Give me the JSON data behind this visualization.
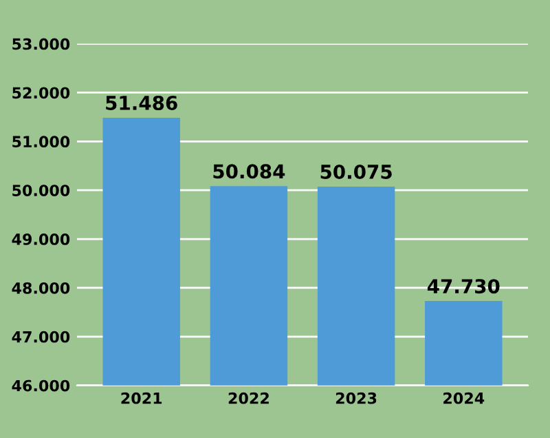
{
  "chart_data": {
    "type": "bar",
    "categories": [
      "2021",
      "2022",
      "2023",
      "2024"
    ],
    "values": [
      51486,
      50084,
      50075,
      47730
    ],
    "color": "#4f9bd7",
    "value_labels": [
      "51.486",
      "50.084",
      "50.075",
      "47.730"
    ],
    "ylim": [
      46000,
      53000
    ],
    "yticks": [
      {
        "value": 46000,
        "label": "46.000"
      },
      {
        "value": 47000,
        "label": "47.000"
      },
      {
        "value": 48000,
        "label": "48.000"
      },
      {
        "value": 49000,
        "label": "49.000"
      },
      {
        "value": 50000,
        "label": "50.000"
      },
      {
        "value": 51000,
        "label": "51.000"
      },
      {
        "value": 52000,
        "label": "52.000"
      },
      {
        "value": 53000,
        "label": "53.000"
      }
    ],
    "grid": "y"
  }
}
